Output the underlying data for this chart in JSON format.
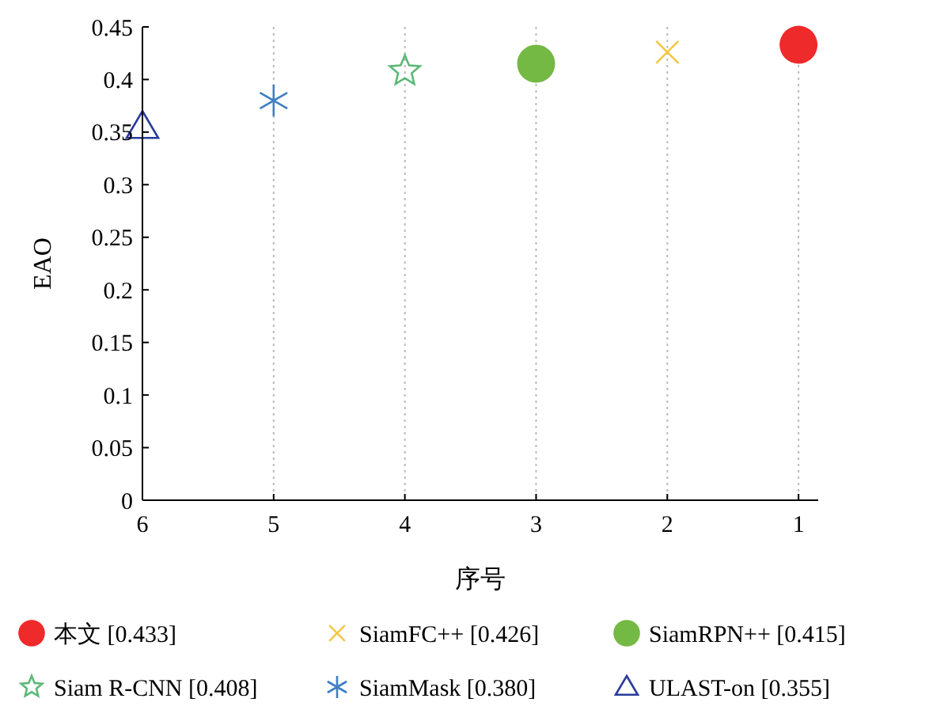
{
  "chart_data": {
    "type": "scatter",
    "xlabel": "序号",
    "ylabel": "EAO",
    "xlim": [
      6,
      0.85
    ],
    "xticks": [
      6,
      5,
      4,
      3,
      2,
      1
    ],
    "ylim": [
      0,
      0.45
    ],
    "yticks": [
      0,
      0.05,
      0.1,
      0.15,
      0.2,
      0.25,
      0.3,
      0.35,
      0.4,
      0.45
    ],
    "legend": "bottom",
    "line_style": "dotted",
    "grid": "x",
    "series": [
      {
        "name": "本文 [0.433]",
        "color": "#ee2a2a",
        "marker": "circle",
        "x": [
          1
        ],
        "values": [
          0.433
        ]
      },
      {
        "name": "SiamFC++ [0.426]",
        "color": "#f2c744",
        "marker": "cross",
        "x": [
          2
        ],
        "values": [
          0.426
        ]
      },
      {
        "name": "SiamRPN++ [0.415]",
        "color": "#73b944",
        "marker": "circle",
        "x": [
          3
        ],
        "values": [
          0.415
        ]
      },
      {
        "name": "Siam R-CNN [0.408]",
        "color": "#5cb877",
        "marker": "star",
        "x": [
          4
        ],
        "values": [
          0.408
        ]
      },
      {
        "name": "SiamMask [0.380]",
        "color": "#3f7fc4",
        "x": [
          5
        ],
        "values": [
          0.38
        ]
      },
      {
        "name": "ULAST-on [0.355]",
        "color": "#2a3b9a",
        "marker": "triangle",
        "x": [
          6
        ],
        "values": [
          0.355
        ]
      }
    ]
  }
}
